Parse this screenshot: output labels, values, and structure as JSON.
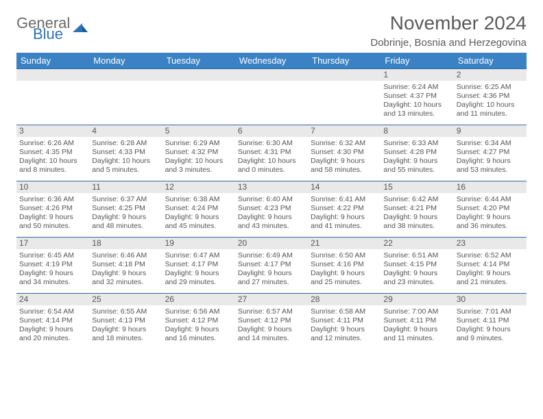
{
  "brand": {
    "general": "General",
    "blue": "Blue"
  },
  "title": "November 2024",
  "location": "Dobrinje, Bosnia and Herzegovina",
  "colors": {
    "header_bg": "#3a82c4",
    "header_text": "#ffffff",
    "daynum_bg": "#e9e9e9",
    "border": "#2d6aa3",
    "text": "#555555",
    "brand_blue": "#2d72b8",
    "brand_gray": "#6a6a6a"
  },
  "weekdays": [
    "Sunday",
    "Monday",
    "Tuesday",
    "Wednesday",
    "Thursday",
    "Friday",
    "Saturday"
  ],
  "weeks": [
    [
      null,
      null,
      null,
      null,
      null,
      {
        "n": "1",
        "sr": "Sunrise: 6:24 AM",
        "ss": "Sunset: 4:37 PM",
        "dl1": "Daylight: 10 hours",
        "dl2": "and 13 minutes."
      },
      {
        "n": "2",
        "sr": "Sunrise: 6:25 AM",
        "ss": "Sunset: 4:36 PM",
        "dl1": "Daylight: 10 hours",
        "dl2": "and 11 minutes."
      }
    ],
    [
      {
        "n": "3",
        "sr": "Sunrise: 6:26 AM",
        "ss": "Sunset: 4:35 PM",
        "dl1": "Daylight: 10 hours",
        "dl2": "and 8 minutes."
      },
      {
        "n": "4",
        "sr": "Sunrise: 6:28 AM",
        "ss": "Sunset: 4:33 PM",
        "dl1": "Daylight: 10 hours",
        "dl2": "and 5 minutes."
      },
      {
        "n": "5",
        "sr": "Sunrise: 6:29 AM",
        "ss": "Sunset: 4:32 PM",
        "dl1": "Daylight: 10 hours",
        "dl2": "and 3 minutes."
      },
      {
        "n": "6",
        "sr": "Sunrise: 6:30 AM",
        "ss": "Sunset: 4:31 PM",
        "dl1": "Daylight: 10 hours",
        "dl2": "and 0 minutes."
      },
      {
        "n": "7",
        "sr": "Sunrise: 6:32 AM",
        "ss": "Sunset: 4:30 PM",
        "dl1": "Daylight: 9 hours",
        "dl2": "and 58 minutes."
      },
      {
        "n": "8",
        "sr": "Sunrise: 6:33 AM",
        "ss": "Sunset: 4:28 PM",
        "dl1": "Daylight: 9 hours",
        "dl2": "and 55 minutes."
      },
      {
        "n": "9",
        "sr": "Sunrise: 6:34 AM",
        "ss": "Sunset: 4:27 PM",
        "dl1": "Daylight: 9 hours",
        "dl2": "and 53 minutes."
      }
    ],
    [
      {
        "n": "10",
        "sr": "Sunrise: 6:36 AM",
        "ss": "Sunset: 4:26 PM",
        "dl1": "Daylight: 9 hours",
        "dl2": "and 50 minutes."
      },
      {
        "n": "11",
        "sr": "Sunrise: 6:37 AM",
        "ss": "Sunset: 4:25 PM",
        "dl1": "Daylight: 9 hours",
        "dl2": "and 48 minutes."
      },
      {
        "n": "12",
        "sr": "Sunrise: 6:38 AM",
        "ss": "Sunset: 4:24 PM",
        "dl1": "Daylight: 9 hours",
        "dl2": "and 45 minutes."
      },
      {
        "n": "13",
        "sr": "Sunrise: 6:40 AM",
        "ss": "Sunset: 4:23 PM",
        "dl1": "Daylight: 9 hours",
        "dl2": "and 43 minutes."
      },
      {
        "n": "14",
        "sr": "Sunrise: 6:41 AM",
        "ss": "Sunset: 4:22 PM",
        "dl1": "Daylight: 9 hours",
        "dl2": "and 41 minutes."
      },
      {
        "n": "15",
        "sr": "Sunrise: 6:42 AM",
        "ss": "Sunset: 4:21 PM",
        "dl1": "Daylight: 9 hours",
        "dl2": "and 38 minutes."
      },
      {
        "n": "16",
        "sr": "Sunrise: 6:44 AM",
        "ss": "Sunset: 4:20 PM",
        "dl1": "Daylight: 9 hours",
        "dl2": "and 36 minutes."
      }
    ],
    [
      {
        "n": "17",
        "sr": "Sunrise: 6:45 AM",
        "ss": "Sunset: 4:19 PM",
        "dl1": "Daylight: 9 hours",
        "dl2": "and 34 minutes."
      },
      {
        "n": "18",
        "sr": "Sunrise: 6:46 AM",
        "ss": "Sunset: 4:18 PM",
        "dl1": "Daylight: 9 hours",
        "dl2": "and 32 minutes."
      },
      {
        "n": "19",
        "sr": "Sunrise: 6:47 AM",
        "ss": "Sunset: 4:17 PM",
        "dl1": "Daylight: 9 hours",
        "dl2": "and 29 minutes."
      },
      {
        "n": "20",
        "sr": "Sunrise: 6:49 AM",
        "ss": "Sunset: 4:17 PM",
        "dl1": "Daylight: 9 hours",
        "dl2": "and 27 minutes."
      },
      {
        "n": "21",
        "sr": "Sunrise: 6:50 AM",
        "ss": "Sunset: 4:16 PM",
        "dl1": "Daylight: 9 hours",
        "dl2": "and 25 minutes."
      },
      {
        "n": "22",
        "sr": "Sunrise: 6:51 AM",
        "ss": "Sunset: 4:15 PM",
        "dl1": "Daylight: 9 hours",
        "dl2": "and 23 minutes."
      },
      {
        "n": "23",
        "sr": "Sunrise: 6:52 AM",
        "ss": "Sunset: 4:14 PM",
        "dl1": "Daylight: 9 hours",
        "dl2": "and 21 minutes."
      }
    ],
    [
      {
        "n": "24",
        "sr": "Sunrise: 6:54 AM",
        "ss": "Sunset: 4:14 PM",
        "dl1": "Daylight: 9 hours",
        "dl2": "and 20 minutes."
      },
      {
        "n": "25",
        "sr": "Sunrise: 6:55 AM",
        "ss": "Sunset: 4:13 PM",
        "dl1": "Daylight: 9 hours",
        "dl2": "and 18 minutes."
      },
      {
        "n": "26",
        "sr": "Sunrise: 6:56 AM",
        "ss": "Sunset: 4:12 PM",
        "dl1": "Daylight: 9 hours",
        "dl2": "and 16 minutes."
      },
      {
        "n": "27",
        "sr": "Sunrise: 6:57 AM",
        "ss": "Sunset: 4:12 PM",
        "dl1": "Daylight: 9 hours",
        "dl2": "and 14 minutes."
      },
      {
        "n": "28",
        "sr": "Sunrise: 6:58 AM",
        "ss": "Sunset: 4:11 PM",
        "dl1": "Daylight: 9 hours",
        "dl2": "and 12 minutes."
      },
      {
        "n": "29",
        "sr": "Sunrise: 7:00 AM",
        "ss": "Sunset: 4:11 PM",
        "dl1": "Daylight: 9 hours",
        "dl2": "and 11 minutes."
      },
      {
        "n": "30",
        "sr": "Sunrise: 7:01 AM",
        "ss": "Sunset: 4:11 PM",
        "dl1": "Daylight: 9 hours",
        "dl2": "and 9 minutes."
      }
    ]
  ]
}
